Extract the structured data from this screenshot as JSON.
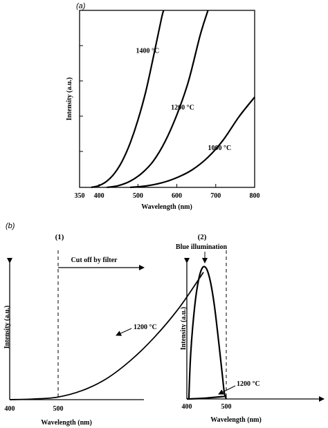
{
  "figure": {
    "panel_a_tag": "(a)",
    "panel_b_tag": "(b)"
  },
  "chart_data": [
    {
      "type": "line",
      "panel": "(a)",
      "xlabel": "Wavelength (nm)",
      "ylabel": "Intensity (a.u.)",
      "xlim": [
        350,
        800
      ],
      "x_ticks": [
        350,
        400,
        500,
        600,
        700,
        800
      ],
      "series": [
        {
          "name": "1400 °C",
          "x": [
            380,
            400,
            420,
            440,
            460,
            480,
            500,
            520,
            540,
            560,
            566
          ],
          "y": [
            0.0,
            0.01,
            0.035,
            0.08,
            0.15,
            0.25,
            0.38,
            0.54,
            0.74,
            0.95,
            1.0
          ]
        },
        {
          "name": "1200 °C",
          "x": [
            420,
            450,
            480,
            510,
            540,
            570,
            600,
            630,
            660,
            680
          ],
          "y": [
            0.0,
            0.01,
            0.035,
            0.08,
            0.15,
            0.26,
            0.41,
            0.6,
            0.86,
            1.0
          ]
        },
        {
          "name": "1000 °C",
          "x": [
            480,
            520,
            560,
            600,
            640,
            680,
            720,
            760,
            800
          ],
          "y": [
            0.0,
            0.008,
            0.025,
            0.055,
            0.1,
            0.17,
            0.27,
            0.4,
            0.51
          ]
        }
      ],
      "annotations": [
        {
          "text": "1400 °C",
          "x": 495,
          "y": 0.76
        },
        {
          "text": "1200 °C",
          "x": 585,
          "y": 0.44
        },
        {
          "text": "1000 °C",
          "x": 680,
          "y": 0.21
        }
      ],
      "grid": false
    },
    {
      "type": "line",
      "panel": "(1)",
      "xlabel": "Wavelength (nm)",
      "ylabel": "Intensity (a.u.)",
      "x_ticks": [
        400,
        500
      ],
      "cutoff_line_x": 500,
      "series": [
        {
          "name": "1200 °C",
          "x": [
            400,
            450,
            500,
            550,
            600,
            650,
            700,
            750,
            800
          ],
          "y": [
            0.0,
            0.005,
            0.02,
            0.07,
            0.16,
            0.3,
            0.48,
            0.7,
            0.97
          ]
        }
      ],
      "annotations": [
        {
          "text": "Cut off by filter",
          "arrow": "right"
        },
        {
          "text": "1200 °C",
          "arrow": "to-curve"
        }
      ],
      "grid": false
    },
    {
      "type": "line",
      "panel": "(2)",
      "xlabel": "Wavelength (nm)",
      "ylabel": "Intensity (a.u.)",
      "x_ticks": [
        400,
        500
      ],
      "cutoff_line_x": 500,
      "series": [
        {
          "name": "Blue illumination",
          "x": [
            405,
            410,
            420,
            430,
            440,
            450,
            460,
            470,
            480,
            490,
            495,
            500
          ],
          "y": [
            0.0,
            0.35,
            0.7,
            0.9,
            0.99,
            0.98,
            0.88,
            0.7,
            0.45,
            0.18,
            0.05,
            0.0
          ]
        },
        {
          "name": "1200 °C",
          "x": [
            400,
            420,
            440,
            460,
            480,
            500
          ],
          "y": [
            0.0,
            0.002,
            0.005,
            0.01,
            0.015,
            0.02
          ]
        }
      ],
      "annotations": [
        {
          "text": "Blue illumination",
          "arrow": "down"
        },
        {
          "text": "1200 °C",
          "arrow": "to-curve"
        }
      ],
      "grid": false
    }
  ]
}
